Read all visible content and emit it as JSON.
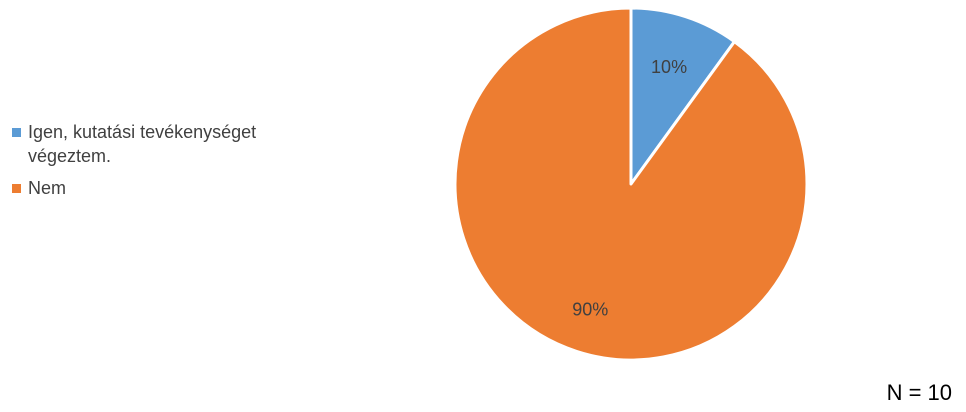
{
  "chart_data": {
    "type": "pie",
    "title": "",
    "slices": [
      {
        "label": "Igen, kutatási tevékenységet végeztem.",
        "value": 10,
        "display": "10%",
        "color": "#5b9bd5"
      },
      {
        "label": "Nem",
        "value": 90,
        "display": "90%",
        "color": "#ed7d31"
      }
    ],
    "legend_position": "left",
    "start_angle_deg": 0,
    "direction": "clockwise"
  },
  "legend": {
    "items": [
      {
        "label": "Igen, kutatási tevékenységet végeztem.",
        "color": "#5b9bd5"
      },
      {
        "label": "Nem",
        "color": "#ed7d31"
      }
    ]
  },
  "footer": {
    "n_label": "N = 10"
  }
}
